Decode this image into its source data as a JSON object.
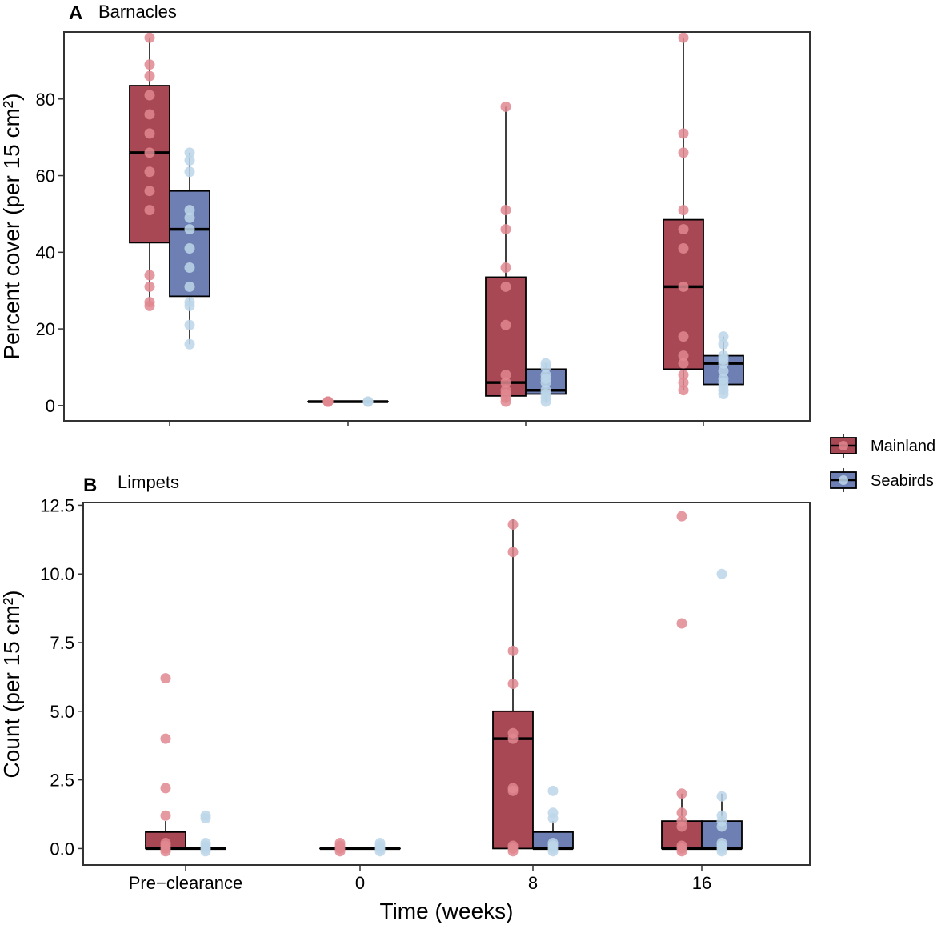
{
  "figure": {
    "x_axis_title": "Time (weeks)",
    "legend": {
      "items": [
        {
          "label": "Mainland",
          "fill": "#a84855",
          "point": "#e0878f"
        },
        {
          "label": "Seabirds",
          "fill": "#6e7fb4",
          "point": "#bcd6e9"
        }
      ]
    }
  },
  "chart_data": [
    {
      "type": "box",
      "panel": "A",
      "title": "Barnacles",
      "ylabel": "Percent cover (per 15 cm²)",
      "ylim": [
        -4,
        97.5
      ],
      "yticks": [
        0,
        20,
        40,
        60,
        80
      ],
      "ytick_labels": [
        "0",
        "20",
        "40",
        "60",
        "80"
      ],
      "categories": [
        "Pre−clearance",
        "0",
        "8",
        "16"
      ],
      "show_category_labels": false,
      "series": [
        {
          "name": "Mainland",
          "boxes": [
            {
              "q1": 42.5,
              "median": 66,
              "q3": 83.5,
              "wlow": 26,
              "whigh": 96
            },
            {
              "q1": 1,
              "median": 1,
              "q3": 1,
              "wlow": 1,
              "whigh": 1
            },
            {
              "q1": 2.5,
              "median": 6,
              "q3": 33.5,
              "wlow": 1,
              "whigh": 78
            },
            {
              "q1": 9.5,
              "median": 31,
              "q3": 48.5,
              "wlow": 4,
              "whigh": 96
            }
          ],
          "points": [
            [
              96,
              89,
              86,
              81,
              76,
              71,
              66,
              61,
              56,
              51,
              34,
              31,
              27,
              26
            ],
            [
              1,
              1,
              1,
              1,
              1
            ],
            [
              78,
              51,
              46,
              36,
              31,
              21,
              8,
              6,
              4,
              3,
              2,
              1
            ],
            [
              96,
              71,
              66,
              51,
              46,
              41,
              31,
              18,
              13,
              11,
              8,
              6,
              4
            ]
          ]
        },
        {
          "name": "Seabirds",
          "boxes": [
            {
              "q1": 28.5,
              "median": 46,
              "q3": 56,
              "wlow": 16,
              "whigh": 66
            },
            {
              "q1": 1,
              "median": 1,
              "q3": 1,
              "wlow": 1,
              "whigh": 1
            },
            {
              "q1": 3,
              "median": 4,
              "q3": 9.5,
              "wlow": 1,
              "whigh": 11
            },
            {
              "q1": 5.5,
              "median": 11,
              "q3": 13,
              "wlow": 3,
              "whigh": 18
            }
          ],
          "points": [
            [
              66,
              64,
              61,
              51,
              49,
              46,
              41,
              36,
              31,
              27,
              26,
              21,
              16
            ],
            [
              1,
              1
            ],
            [
              11,
              10,
              8,
              7,
              6,
              4,
              3,
              2,
              1
            ],
            [
              18,
              16,
              13,
              12,
              11,
              9,
              7,
              6,
              5,
              4,
              3
            ]
          ]
        }
      ]
    },
    {
      "type": "box",
      "panel": "B",
      "title": "Limpets",
      "ylabel": "Count (per 15 cm²)",
      "ylim": [
        -0.6,
        12.6
      ],
      "yticks": [
        0,
        2.5,
        5,
        7.5,
        10,
        12.5
      ],
      "ytick_labels": [
        "0.0",
        "2.5",
        "5.0",
        "7.5",
        "10.0",
        "12.5"
      ],
      "categories": [
        "Pre−clearance",
        "0",
        "8",
        "16"
      ],
      "show_category_labels": true,
      "series": [
        {
          "name": "Mainland",
          "boxes": [
            {
              "q1": 0,
              "median": 0,
              "q3": 0.6,
              "wlow": 0,
              "whigh": 1
            },
            {
              "q1": 0,
              "median": 0,
              "q3": 0,
              "wlow": 0,
              "whigh": 0
            },
            {
              "q1": 0,
              "median": 4,
              "q3": 5,
              "wlow": 0,
              "whigh": 12
            },
            {
              "q1": 0,
              "median": 0,
              "q3": 1,
              "wlow": 0,
              "whigh": 2
            }
          ],
          "points": [
            [
              6.2,
              4,
              2.2,
              1.2,
              0.2,
              0.1,
              0,
              -0.1
            ],
            [
              0.2,
              0.1,
              0,
              -0.1
            ],
            [
              11.8,
              10.8,
              7.2,
              6,
              4.2,
              4,
              2.2,
              2.1,
              0.1,
              0,
              -0.1
            ],
            [
              12.1,
              8.2,
              2,
              1.3,
              1,
              0.8,
              0.1,
              0,
              -0.1
            ]
          ]
        },
        {
          "name": "Seabirds",
          "boxes": [
            {
              "q1": 0,
              "median": 0,
              "q3": 0,
              "wlow": 0,
              "whigh": 0
            },
            {
              "q1": 0,
              "median": 0,
              "q3": 0,
              "wlow": 0,
              "whigh": 0
            },
            {
              "q1": 0,
              "median": 0,
              "q3": 0.6,
              "wlow": 0,
              "whigh": 1
            },
            {
              "q1": 0,
              "median": 0,
              "q3": 1,
              "wlow": 0,
              "whigh": 2
            }
          ],
          "points": [
            [
              1.2,
              1.1,
              0.2,
              0.1,
              0,
              -0.1
            ],
            [
              0.2,
              0.1,
              0,
              -0.1
            ],
            [
              2.1,
              1.3,
              1.1,
              0.2,
              0.1,
              0,
              -0.1
            ],
            [
              10,
              1.9,
              1.2,
              1,
              0.8,
              0.2,
              0.1,
              0,
              -0.1
            ]
          ]
        }
      ]
    }
  ]
}
